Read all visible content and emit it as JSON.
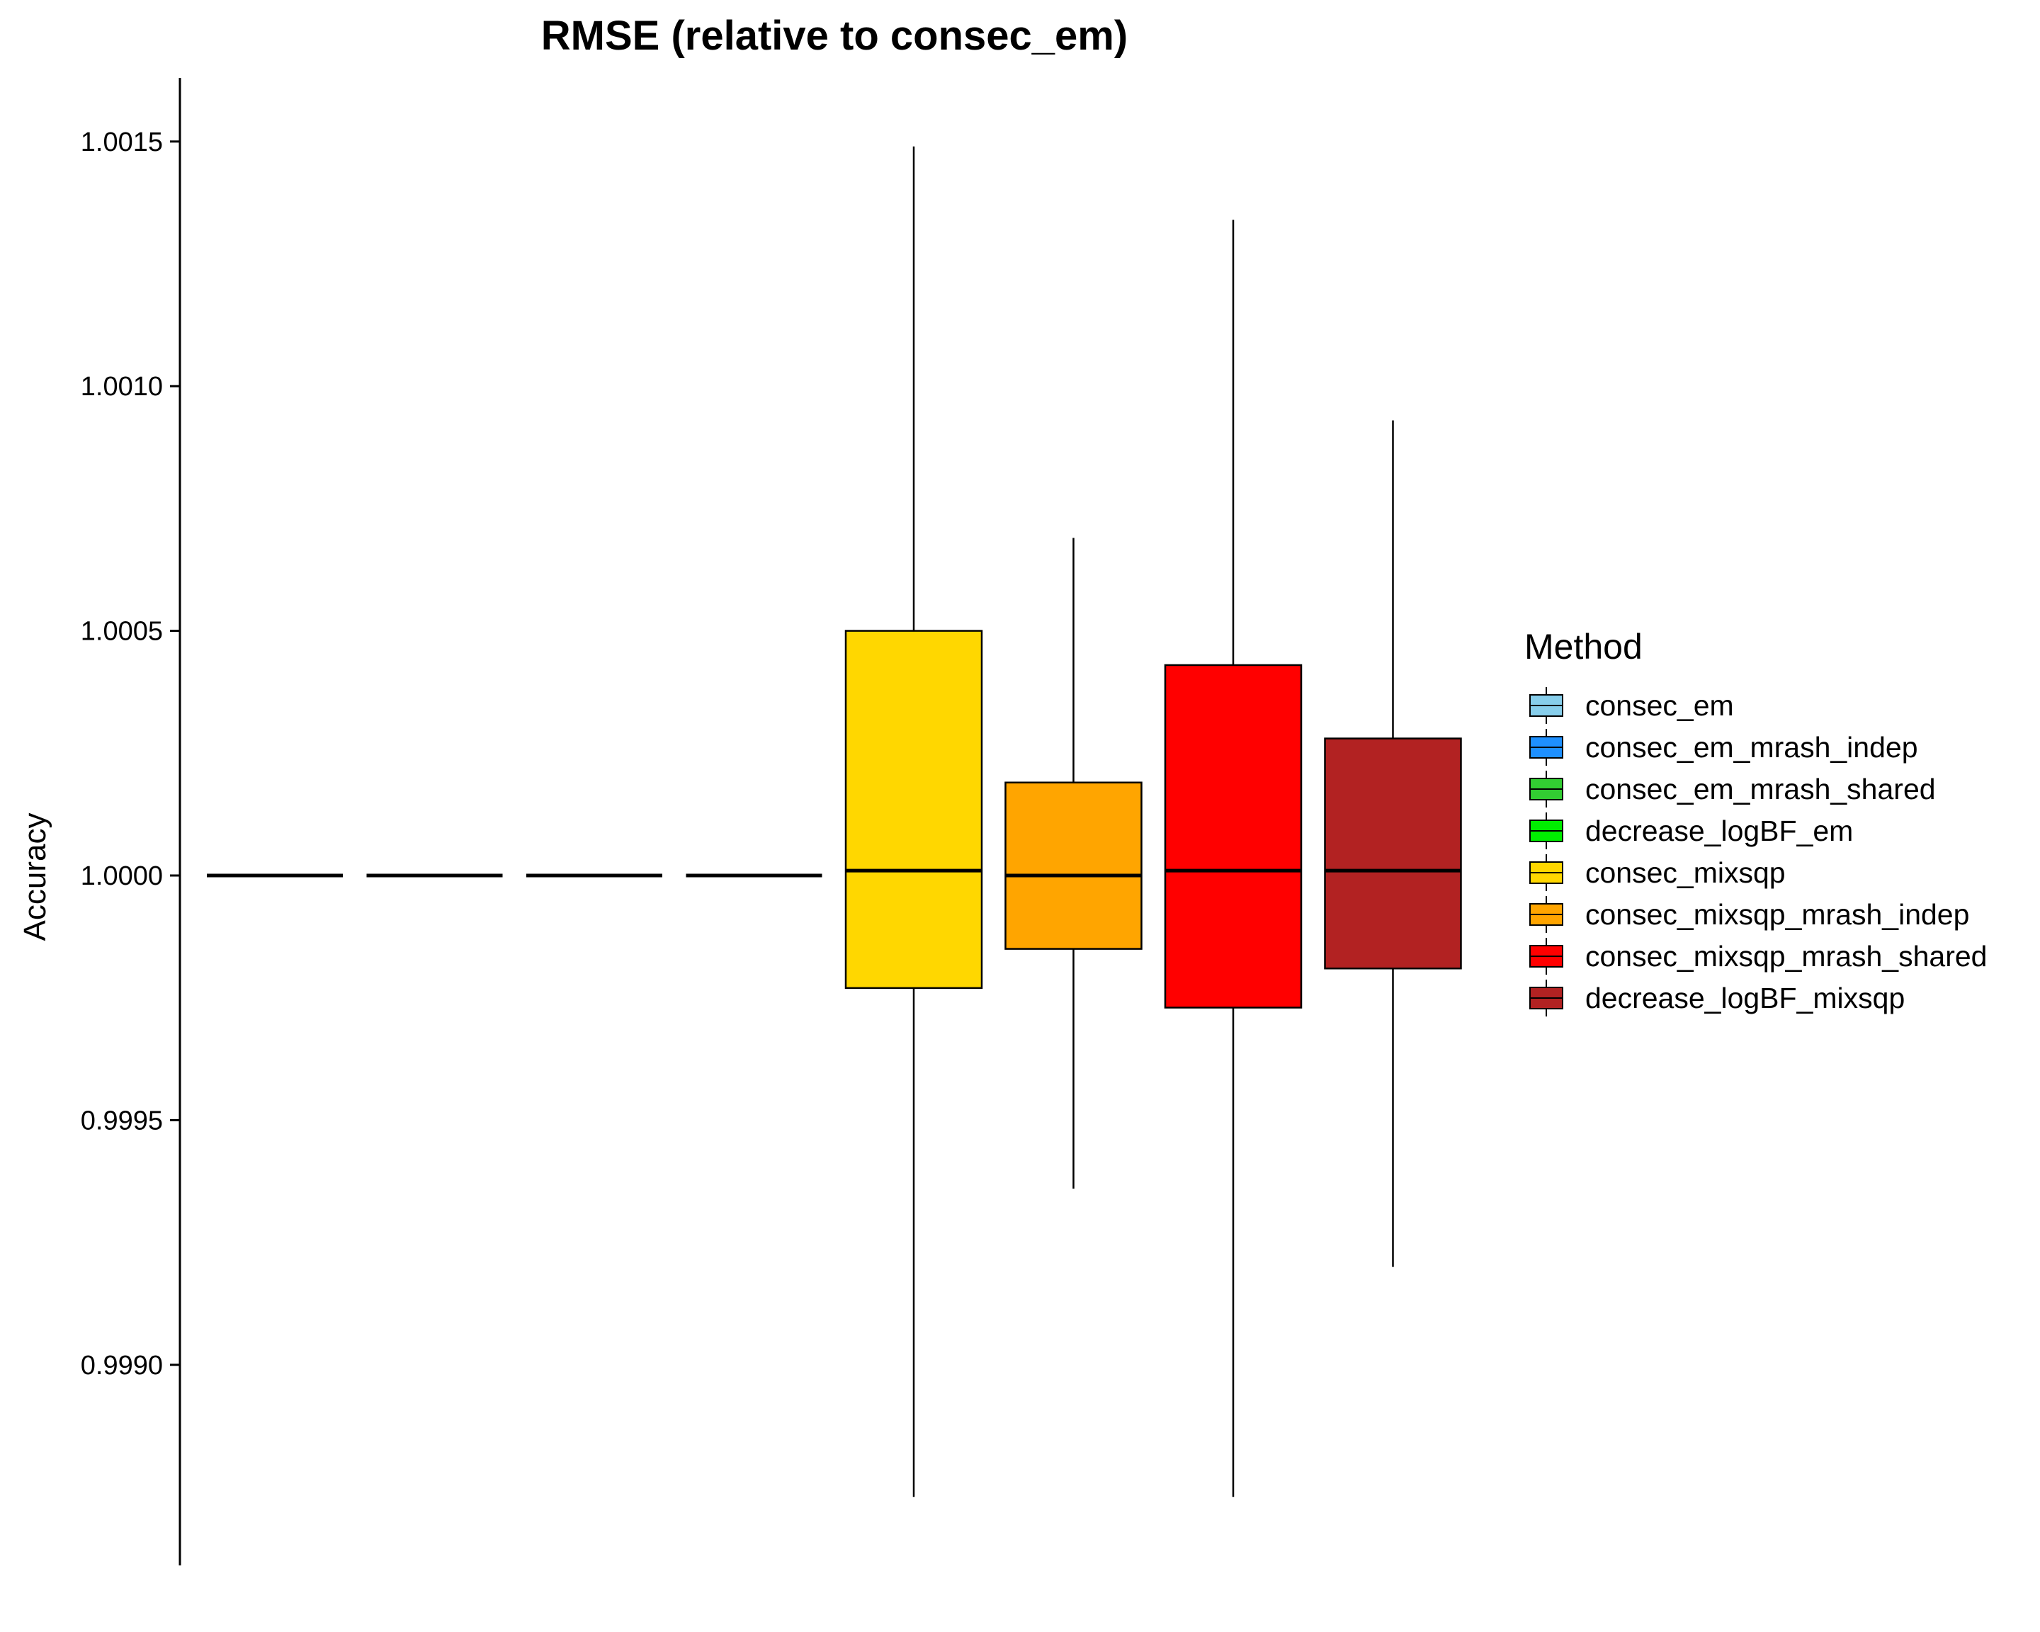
{
  "chart_data": {
    "type": "box",
    "title": "RMSE (relative to consec_em)",
    "ylabel": "Accuracy",
    "xlabel": "",
    "ylim": [
      0.99859,
      1.00163
    ],
    "yticks": [
      0.999,
      0.9995,
      1.0,
      1.0005,
      1.001,
      1.0015
    ],
    "ytick_labels": [
      "0.9990",
      "0.9995",
      "1.0000",
      "1.0005",
      "1.0010",
      "1.0015"
    ],
    "grid": false,
    "legend_position": "right",
    "legend_title": "Method",
    "series": [
      {
        "name": "consec_em",
        "color": "#87CEEB",
        "min": 1.0,
        "q1": 1.0,
        "median": 1.0,
        "q3": 1.0,
        "max": 1.0
      },
      {
        "name": "consec_em_mrash_indep",
        "color": "#1E90FF",
        "min": 1.0,
        "q1": 1.0,
        "median": 1.0,
        "q3": 1.0,
        "max": 1.0
      },
      {
        "name": "consec_em_mrash_shared",
        "color": "#32CD32",
        "min": 1.0,
        "q1": 1.0,
        "median": 1.0,
        "q3": 1.0,
        "max": 1.0
      },
      {
        "name": "decrease_logBF_em",
        "color": "#00EE00",
        "min": 1.0,
        "q1": 1.0,
        "median": 1.0,
        "q3": 1.0,
        "max": 1.0
      },
      {
        "name": "consec_mixsqp",
        "color": "#FFD700",
        "min": 0.99873,
        "q1": 0.99977,
        "median": 1.00001,
        "q3": 1.0005,
        "max": 1.00149
      },
      {
        "name": "consec_mixsqp_mrash_indep",
        "color": "#FFA500",
        "min": 0.99936,
        "q1": 0.99985,
        "median": 1.0,
        "q3": 1.00019,
        "max": 1.00069
      },
      {
        "name": "consec_mixsqp_mrash_shared",
        "color": "#FF0000",
        "min": 0.99873,
        "q1": 0.99973,
        "median": 1.00001,
        "q3": 1.00043,
        "max": 1.00134
      },
      {
        "name": "decrease_logBF_mixsqp",
        "color": "#B22222",
        "min": 0.9992,
        "q1": 0.99981,
        "median": 1.00001,
        "q3": 1.00028,
        "max": 1.00093
      }
    ]
  }
}
